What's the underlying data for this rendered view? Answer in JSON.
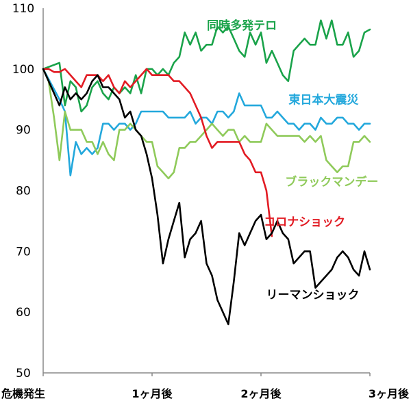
{
  "chart_data": {
    "type": "line",
    "title": "",
    "xlabel": "",
    "ylabel": "",
    "ylim": [
      50,
      110
    ],
    "yticks": [
      50,
      60,
      70,
      80,
      90,
      100,
      110
    ],
    "xlim": [
      0,
      60
    ],
    "xticks": [
      {
        "x": 0,
        "label": "危機発生"
      },
      {
        "x": 20,
        "label": "1ヶ月後"
      },
      {
        "x": 40,
        "label": "2ヶ月後"
      },
      {
        "x": 60,
        "label": "3ヶ月後"
      }
    ],
    "grid": false,
    "series": [
      {
        "name": "同時多発テロ",
        "color": "#1aa34a",
        "label_anchor": {
          "x": 36.5,
          "y": 106.5
        },
        "points": [
          [
            0,
            100
          ],
          [
            3,
            101
          ],
          [
            4,
            94
          ],
          [
            5,
            98
          ],
          [
            6,
            97
          ],
          [
            7,
            93
          ],
          [
            8,
            94
          ],
          [
            9,
            97
          ],
          [
            10,
            98
          ],
          [
            11,
            96
          ],
          [
            12,
            95
          ],
          [
            13,
            97
          ],
          [
            14,
            96
          ],
          [
            15,
            97
          ],
          [
            16,
            96
          ],
          [
            17,
            99
          ],
          [
            18,
            96
          ],
          [
            19,
            100
          ],
          [
            20,
            100
          ],
          [
            21,
            99
          ],
          [
            22,
            100
          ],
          [
            23,
            99
          ],
          [
            24,
            101
          ],
          [
            25,
            102
          ],
          [
            26,
            106
          ],
          [
            27,
            104
          ],
          [
            28,
            106
          ],
          [
            29,
            103
          ],
          [
            30,
            104
          ],
          [
            31,
            104
          ],
          [
            32,
            107
          ],
          [
            33,
            106
          ],
          [
            34,
            107
          ],
          [
            35,
            105
          ],
          [
            36,
            103
          ],
          [
            37,
            102
          ],
          [
            38,
            106
          ],
          [
            39,
            104
          ],
          [
            40,
            106
          ],
          [
            41,
            101
          ],
          [
            42,
            103
          ],
          [
            43,
            101
          ],
          [
            44,
            99
          ],
          [
            45,
            98
          ],
          [
            46,
            103
          ],
          [
            47,
            104
          ],
          [
            48,
            105
          ],
          [
            49,
            104
          ],
          [
            50,
            104
          ],
          [
            51,
            108
          ],
          [
            52,
            105
          ],
          [
            53,
            108
          ],
          [
            54,
            104
          ],
          [
            55,
            104
          ],
          [
            56,
            106
          ],
          [
            57,
            102
          ],
          [
            58,
            103
          ],
          [
            59,
            106
          ],
          [
            60,
            106.5
          ]
        ]
      },
      {
        "name": "東日本大震災",
        "color": "#23a8dc",
        "label_anchor": {
          "x": 51.5,
          "y": 94.3
        },
        "points": [
          [
            0,
            100
          ],
          [
            3,
            95
          ],
          [
            4,
            93
          ],
          [
            5,
            82.5
          ],
          [
            6,
            88
          ],
          [
            7,
            86
          ],
          [
            8,
            87
          ],
          [
            9,
            86
          ],
          [
            10,
            87
          ],
          [
            11,
            91
          ],
          [
            12,
            91
          ],
          [
            13,
            90
          ],
          [
            14,
            91
          ],
          [
            15,
            91
          ],
          [
            16,
            90
          ],
          [
            17,
            91
          ],
          [
            18,
            93
          ],
          [
            19,
            93
          ],
          [
            20,
            93
          ],
          [
            21,
            93
          ],
          [
            22,
            93
          ],
          [
            23,
            92
          ],
          [
            24,
            92
          ],
          [
            25,
            92
          ],
          [
            26,
            92
          ],
          [
            27,
            93
          ],
          [
            28,
            91
          ],
          [
            29,
            92
          ],
          [
            30,
            92
          ],
          [
            31,
            91
          ],
          [
            32,
            93
          ],
          [
            33,
            93
          ],
          [
            34,
            92
          ],
          [
            35,
            93
          ],
          [
            36,
            96
          ],
          [
            37,
            94
          ],
          [
            38,
            94
          ],
          [
            39,
            94
          ],
          [
            40,
            94
          ],
          [
            41,
            92
          ],
          [
            42,
            92
          ],
          [
            43,
            93
          ],
          [
            44,
            92
          ],
          [
            45,
            91
          ],
          [
            46,
            91
          ],
          [
            47,
            90
          ],
          [
            48,
            91
          ],
          [
            49,
            91
          ],
          [
            50,
            90
          ],
          [
            51,
            92
          ],
          [
            52,
            91
          ],
          [
            53,
            91
          ],
          [
            54,
            92
          ],
          [
            55,
            92
          ],
          [
            56,
            91
          ],
          [
            57,
            91
          ],
          [
            58,
            90
          ],
          [
            59,
            91
          ],
          [
            60,
            91
          ]
        ]
      },
      {
        "name": "ブラックマンデー",
        "color": "#8fca5a",
        "label_anchor": {
          "x": 53,
          "y": 80.8
        },
        "points": [
          [
            0,
            100
          ],
          [
            1,
            98
          ],
          [
            2,
            92
          ],
          [
            3,
            85
          ],
          [
            4,
            93
          ],
          [
            5,
            90
          ],
          [
            6,
            90
          ],
          [
            7,
            90
          ],
          [
            8,
            88
          ],
          [
            9,
            88
          ],
          [
            10,
            86
          ],
          [
            11,
            88
          ],
          [
            12,
            86
          ],
          [
            13,
            85
          ],
          [
            14,
            90
          ],
          [
            15,
            90
          ],
          [
            16,
            91
          ],
          [
            17,
            90
          ],
          [
            18,
            89
          ],
          [
            19,
            88
          ],
          [
            20,
            88
          ],
          [
            21,
            84
          ],
          [
            22,
            83
          ],
          [
            23,
            82
          ],
          [
            24,
            83
          ],
          [
            25,
            87
          ],
          [
            26,
            87
          ],
          [
            27,
            88
          ],
          [
            28,
            88
          ],
          [
            29,
            89
          ],
          [
            30,
            90
          ],
          [
            31,
            91
          ],
          [
            32,
            90
          ],
          [
            33,
            89
          ],
          [
            34,
            90
          ],
          [
            35,
            90
          ],
          [
            36,
            88
          ],
          [
            37,
            89
          ],
          [
            38,
            88
          ],
          [
            39,
            88
          ],
          [
            40,
            88
          ],
          [
            41,
            91
          ],
          [
            42,
            90
          ],
          [
            43,
            89
          ],
          [
            44,
            89
          ],
          [
            45,
            89
          ],
          [
            46,
            89
          ],
          [
            47,
            89
          ],
          [
            48,
            88
          ],
          [
            49,
            89
          ],
          [
            50,
            88
          ],
          [
            51,
            89
          ],
          [
            52,
            85
          ],
          [
            53,
            84
          ],
          [
            54,
            83
          ],
          [
            55,
            84
          ],
          [
            56,
            84
          ],
          [
            57,
            88
          ],
          [
            58,
            88
          ],
          [
            59,
            89
          ],
          [
            60,
            88
          ]
        ]
      },
      {
        "name": "コロナショック",
        "color": "#e21b23",
        "label_anchor": {
          "x": 48,
          "y": 74.2
        },
        "points": [
          [
            0,
            100
          ],
          [
            1,
            100
          ],
          [
            2,
            99.5
          ],
          [
            3,
            99.5
          ],
          [
            4,
            100
          ],
          [
            5,
            99
          ],
          [
            6,
            98
          ],
          [
            7,
            97
          ],
          [
            8,
            99
          ],
          [
            9,
            99
          ],
          [
            10,
            99
          ],
          [
            11,
            98
          ],
          [
            12,
            99
          ],
          [
            13,
            97
          ],
          [
            14,
            96
          ],
          [
            15,
            98
          ],
          [
            16,
            97
          ],
          [
            17,
            98
          ],
          [
            18,
            99
          ],
          [
            19,
            100
          ],
          [
            20,
            99
          ],
          [
            21,
            99
          ],
          [
            22,
            99
          ],
          [
            23,
            99
          ],
          [
            24,
            98
          ],
          [
            25,
            98
          ],
          [
            26,
            97
          ],
          [
            27,
            96
          ],
          [
            28,
            94
          ],
          [
            29,
            92
          ],
          [
            30,
            89
          ],
          [
            31,
            87
          ],
          [
            32,
            88
          ],
          [
            33,
            88
          ],
          [
            34,
            88
          ],
          [
            35,
            88
          ],
          [
            36,
            88
          ],
          [
            37,
            86
          ],
          [
            38,
            85
          ],
          [
            39,
            83
          ],
          [
            40,
            83
          ],
          [
            41,
            80
          ],
          [
            42,
            72.5
          ]
        ]
      },
      {
        "name": "リーマンショック",
        "color": "#000000",
        "label_anchor": {
          "x": 49.5,
          "y": 62.2
        },
        "points": [
          [
            0,
            100
          ],
          [
            1,
            98
          ],
          [
            2,
            96
          ],
          [
            3,
            94
          ],
          [
            4,
            97
          ],
          [
            5,
            95
          ],
          [
            6,
            96
          ],
          [
            7,
            95
          ],
          [
            8,
            96
          ],
          [
            9,
            98
          ],
          [
            10,
            99
          ],
          [
            11,
            97
          ],
          [
            12,
            97
          ],
          [
            13,
            96
          ],
          [
            14,
            95
          ],
          [
            15,
            92
          ],
          [
            16,
            93
          ],
          [
            17,
            90
          ],
          [
            18,
            89
          ],
          [
            19,
            86
          ],
          [
            20,
            82
          ],
          [
            21,
            76
          ],
          [
            22,
            68
          ],
          [
            23,
            72
          ],
          [
            24,
            75
          ],
          [
            25,
            78
          ],
          [
            26,
            69
          ],
          [
            27,
            72
          ],
          [
            28,
            73
          ],
          [
            29,
            75
          ],
          [
            30,
            68
          ],
          [
            31,
            66
          ],
          [
            32,
            62
          ],
          [
            33,
            60
          ],
          [
            34,
            58
          ],
          [
            35,
            65
          ],
          [
            36,
            73
          ],
          [
            37,
            71
          ],
          [
            38,
            73
          ],
          [
            39,
            75
          ],
          [
            40,
            76
          ],
          [
            41,
            72
          ],
          [
            42,
            73
          ],
          [
            43,
            75
          ],
          [
            44,
            73
          ],
          [
            45,
            72
          ],
          [
            46,
            68
          ],
          [
            47,
            69
          ],
          [
            48,
            70
          ],
          [
            49,
            70
          ],
          [
            50,
            64
          ],
          [
            51,
            65
          ],
          [
            52,
            66
          ],
          [
            53,
            67
          ],
          [
            54,
            69
          ],
          [
            55,
            70
          ],
          [
            56,
            69
          ],
          [
            57,
            67
          ],
          [
            58,
            66
          ],
          [
            59,
            70
          ],
          [
            60,
            67
          ]
        ]
      }
    ]
  }
}
